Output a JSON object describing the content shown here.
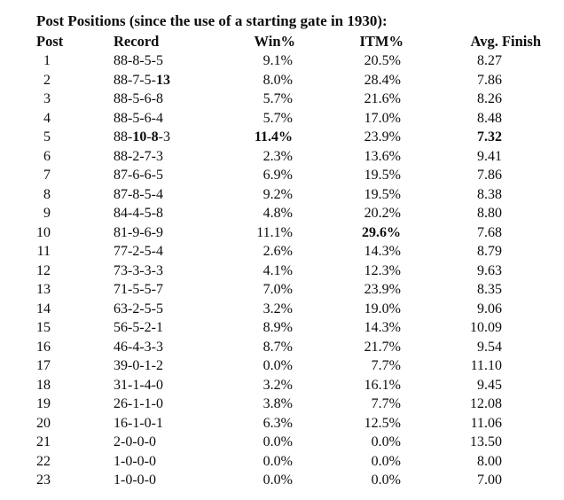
{
  "title": "Post Positions (since the use of a starting gate in 1930):",
  "table": {
    "columns": [
      "Post",
      "Record",
      "Win%",
      "ITM%",
      "Avg. Finish"
    ],
    "rows": [
      {
        "post": "1",
        "record": "88-8-5-5",
        "win": "9.1%",
        "itm": "20.5%",
        "avg": "8.27"
      },
      {
        "post": "2",
        "record": "88-7-5-**13**",
        "win": "8.0%",
        "itm": "28.4%",
        "avg": "7.86"
      },
      {
        "post": "3",
        "record": "88-5-6-8",
        "win": "5.7%",
        "itm": "21.6%",
        "avg": "8.26"
      },
      {
        "post": "4",
        "record": "88-5-6-4",
        "win": "5.7%",
        "itm": "17.0%",
        "avg": "8.48"
      },
      {
        "post": "5",
        "record": "88-**10**-**8**-3",
        "win": "**11.4%**",
        "itm": "23.9%",
        "avg": "**7.32**"
      },
      {
        "post": "6",
        "record": "88-2-7-3",
        "win": "2.3%",
        "itm": "13.6%",
        "avg": "9.41"
      },
      {
        "post": "7",
        "record": "87-6-6-5",
        "win": "6.9%",
        "itm": "19.5%",
        "avg": "7.86"
      },
      {
        "post": "8",
        "record": "87-8-5-4",
        "win": "9.2%",
        "itm": "19.5%",
        "avg": "8.38"
      },
      {
        "post": "9",
        "record": "84-4-5-8",
        "win": "4.8%",
        "itm": "20.2%",
        "avg": "8.80"
      },
      {
        "post": "10",
        "record": "81-9-6-9",
        "win": "11.1%",
        "itm": "**29.6%**",
        "avg": "7.68"
      },
      {
        "post": "11",
        "record": "77-2-5-4",
        "win": "2.6%",
        "itm": "14.3%",
        "avg": "8.79"
      },
      {
        "post": "12",
        "record": "73-3-3-3",
        "win": "4.1%",
        "itm": "12.3%",
        "avg": "9.63"
      },
      {
        "post": "13",
        "record": "71-5-5-7",
        "win": "7.0%",
        "itm": "23.9%",
        "avg": "8.35"
      },
      {
        "post": "14",
        "record": "63-2-5-5",
        "win": "3.2%",
        "itm": "19.0%",
        "avg": "9.06"
      },
      {
        "post": "15",
        "record": "56-5-2-1",
        "win": "8.9%",
        "itm": "14.3%",
        "avg": "10.09"
      },
      {
        "post": "16",
        "record": "46-4-3-3",
        "win": "8.7%",
        "itm": "21.7%",
        "avg": "9.54"
      },
      {
        "post": "17",
        "record": "39-0-1-2",
        "win": "0.0%",
        "itm": "7.7%",
        "avg": "11.10"
      },
      {
        "post": "18",
        "record": "31-1-4-0",
        "win": "3.2%",
        "itm": "16.1%",
        "avg": "9.45"
      },
      {
        "post": "19",
        "record": "26-1-1-0",
        "win": "3.8%",
        "itm": "7.7%",
        "avg": "12.08"
      },
      {
        "post": "20",
        "record": "16-1-0-1",
        "win": "6.3%",
        "itm": "12.5%",
        "avg": "11.06"
      },
      {
        "post": "21",
        "record": "2-0-0-0",
        "win": "0.0%",
        "itm": "0.0%",
        "avg": "13.50"
      },
      {
        "post": "22",
        "record": "1-0-0-0",
        "win": "0.0%",
        "itm": "0.0%",
        "avg": "8.00"
      },
      {
        "post": "23",
        "record": "1-0-0-0",
        "win": "0.0%",
        "itm": "0.0%",
        "avg": "7.00"
      }
    ]
  },
  "colors": {
    "text": "#0d0d0d",
    "background": "#ffffff"
  }
}
